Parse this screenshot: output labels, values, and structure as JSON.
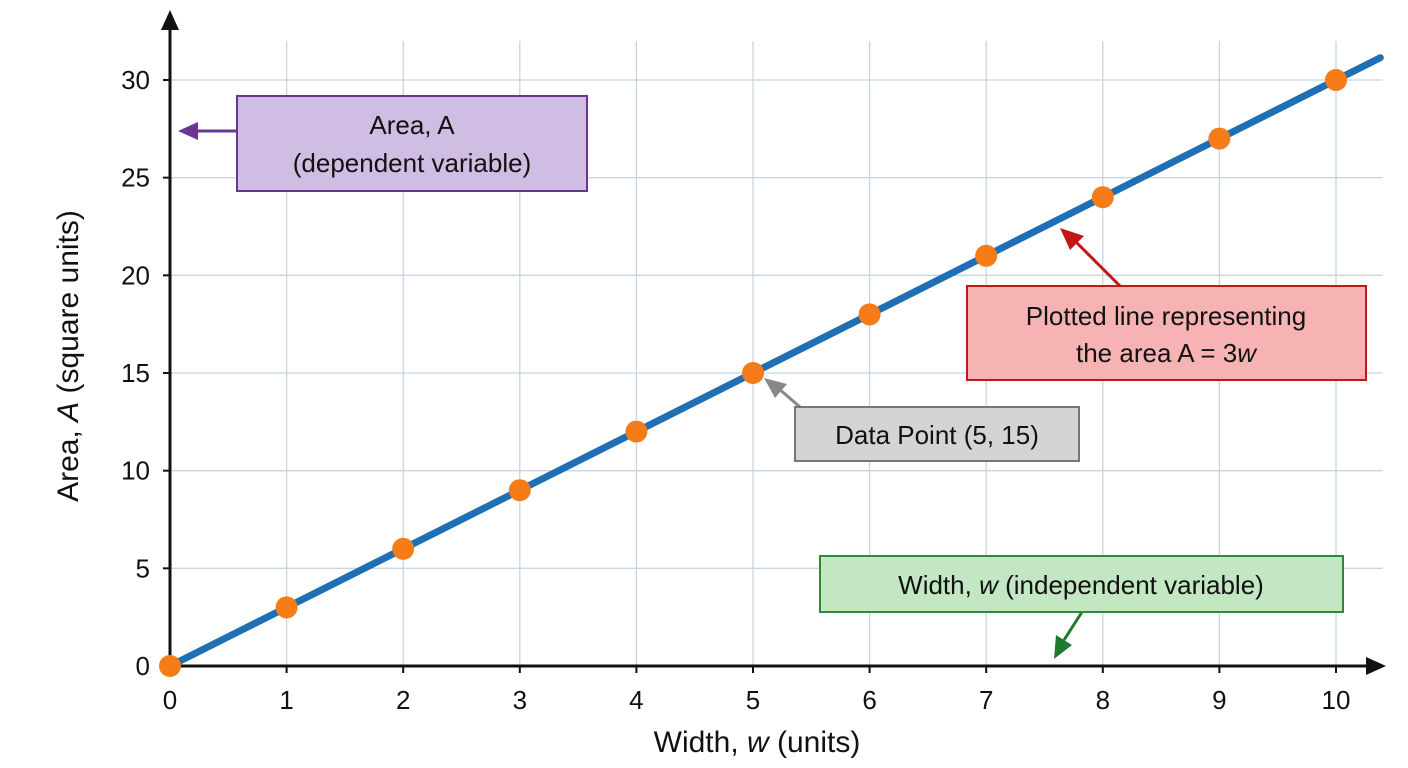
{
  "chart_data": {
    "type": "line",
    "x": [
      0,
      1,
      2,
      3,
      4,
      5,
      6,
      7,
      8,
      9,
      10
    ],
    "series": [
      {
        "values": [
          0,
          3,
          6,
          9,
          12,
          15,
          18,
          21,
          24,
          27,
          30
        ],
        "color": "#1f6fb4",
        "marker_color": "#f57c17"
      }
    ],
    "xlim": [
      0,
      10.4
    ],
    "ylim": [
      0,
      32.5
    ],
    "x_ticks": [
      0,
      1,
      2,
      3,
      4,
      5,
      6,
      7,
      8,
      9,
      10
    ],
    "y_ticks": [
      0,
      5,
      10,
      15,
      20,
      25,
      30
    ],
    "xlabel": {
      "prefix": "Width, ",
      "var": "w",
      "suffix": " (units)"
    },
    "ylabel": {
      "prefix": "Area, ",
      "var": "A",
      "suffix": " (square units)"
    },
    "grid": true,
    "annotations": {
      "area": {
        "line1": "Area, A",
        "line2": "(dependent variable)",
        "fill": "#d0bde3",
        "stroke": "#6a3594",
        "arrow_color": "#6a3594"
      },
      "line": {
        "line1": "Plotted line representing",
        "line2_prefix": "the area A = 3",
        "line2_var": "w",
        "fill": "#f7b3b3",
        "stroke": "#c01818",
        "arrow_color": "#c01818"
      },
      "point": {
        "text": "Data Point (5, 15)",
        "point": [
          5,
          15
        ],
        "fill": "#d4d4d4",
        "stroke": "#777777",
        "arrow_color": "#888888"
      },
      "width": {
        "prefix": "Width, ",
        "var": "w",
        "suffix": " (independent variable)",
        "fill": "#c3e6c3",
        "stroke": "#2c8a3a",
        "arrow_color": "#1f7a2e"
      }
    }
  }
}
